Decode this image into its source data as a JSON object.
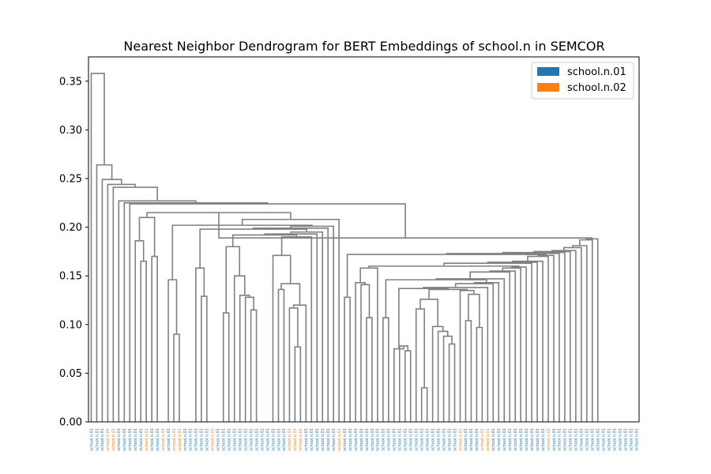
{
  "chart_data": {
    "type": "dendrogram",
    "title": "Nearest Neighbor Dendrogram for BERT Embeddings of school.n in SEMCOR",
    "xlabel": "",
    "ylabel": "",
    "ylim": [
      0,
      0.375
    ],
    "yticks": [
      0.0,
      0.05,
      0.1,
      0.15,
      0.2,
      0.25,
      0.3,
      0.35
    ],
    "ytick_labels": [
      "0.00",
      "0.05",
      "0.10",
      "0.15",
      "0.20",
      "0.25",
      "0.30",
      "0.35"
    ],
    "grid": false,
    "legend_position": "top-right",
    "legend": [
      {
        "name": "school.n.01",
        "color": "#1f77b4"
      },
      {
        "name": "school.n.02",
        "color": "#ff7f0e"
      }
    ],
    "link_color": "#808080",
    "leaf_count": 100,
    "leaf_label_text": "school.n.01",
    "orange_leaf_indices": [
      3,
      4,
      10,
      13,
      15,
      16,
      22,
      36,
      37,
      38,
      45,
      67,
      71,
      72,
      83
    ],
    "top_merge_height": 0.358,
    "second_merge_height": 0.264,
    "chain_heights": [
      0.249,
      0.244,
      0.241,
      0.227,
      0.225,
      0.224
    ],
    "mid_chain_heights": [
      0.215,
      0.21,
      0.208,
      0.202,
      0.201,
      0.199,
      0.198,
      0.195,
      0.193,
      0.192,
      0.19
    ],
    "central_merge_height": 0.189,
    "right_chain_heights": [
      0.188,
      0.187,
      0.181,
      0.179,
      0.176,
      0.175,
      0.174,
      0.173,
      0.172,
      0.171,
      0.17,
      0.165,
      0.164,
      0.163,
      0.16,
      0.159,
      0.158,
      0.155,
      0.154,
      0.147,
      0.146,
      0.143,
      0.142,
      0.138,
      0.137,
      0.136,
      0.135
    ],
    "inner_merge_heights": [
      0.186,
      0.165,
      0.17,
      0.146,
      0.09,
      0.158,
      0.129,
      0.18,
      0.112,
      0.15,
      0.13,
      0.128,
      0.115,
      0.171,
      0.142,
      0.136,
      0.12,
      0.117,
      0.077,
      0.128,
      0.158,
      0.143,
      0.141,
      0.107,
      0.107,
      0.075,
      0.078,
      0.073,
      0.126,
      0.116,
      0.035,
      0.098,
      0.093,
      0.088,
      0.08,
      0.131,
      0.104,
      0.097
    ]
  }
}
